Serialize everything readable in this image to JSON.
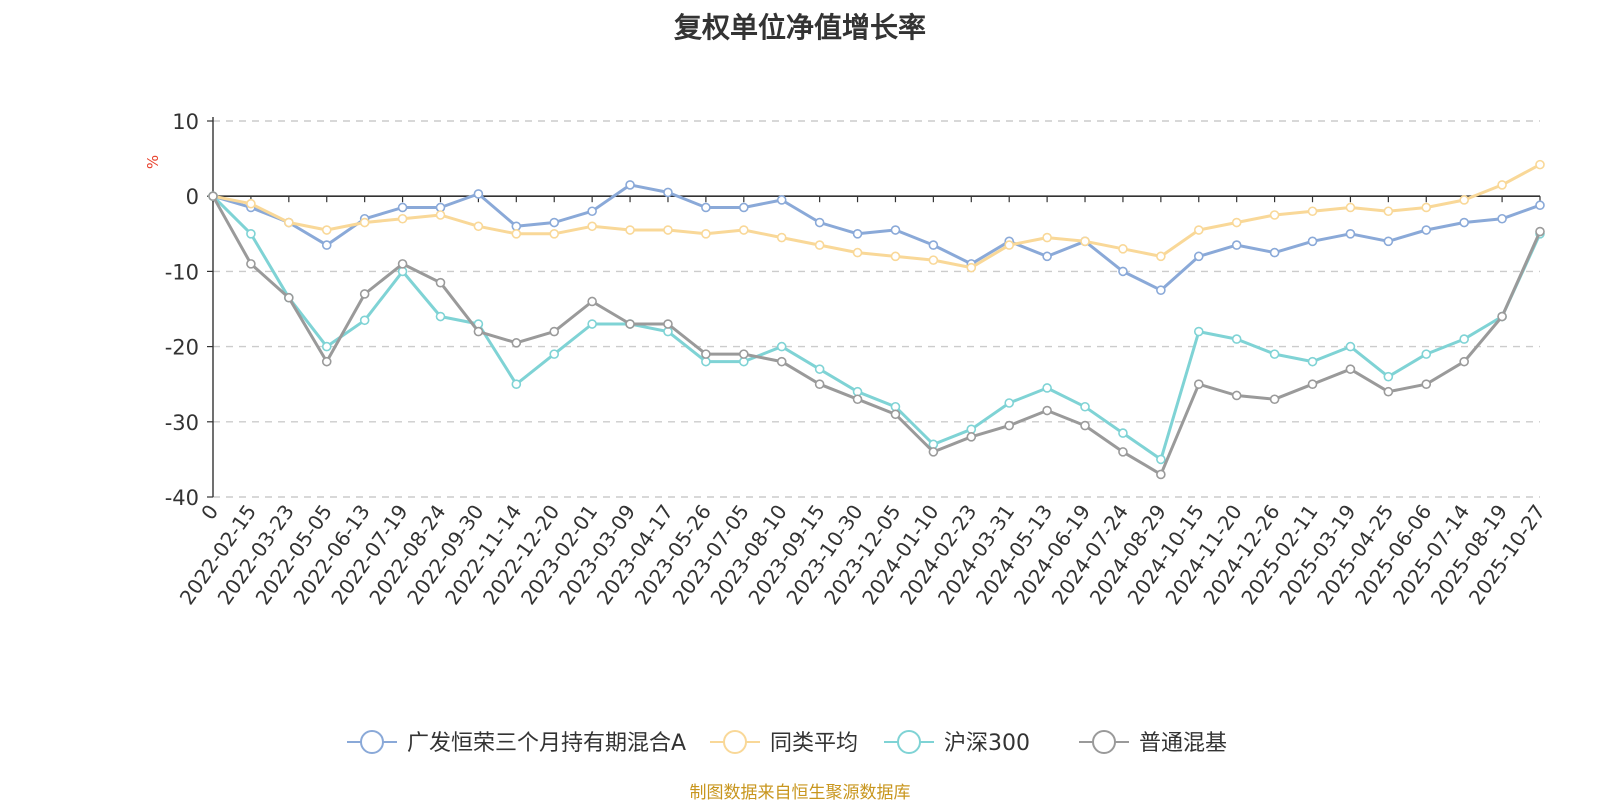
{
  "chart_data": {
    "type": "line",
    "title": "复权单位净值增长率",
    "ylabel": "%",
    "xlabel": "",
    "ylim": [
      -40,
      10
    ],
    "yticks": [
      10,
      0,
      -10,
      -20,
      -30,
      -40
    ],
    "grid": true,
    "legend_position": "bottom-center",
    "x": [
      "0",
      "2022-02-15",
      "2022-03-23",
      "2022-05-05",
      "2022-06-13",
      "2022-07-19",
      "2022-08-24",
      "2022-09-30",
      "2022-11-14",
      "2022-12-20",
      "2023-02-01",
      "2023-03-09",
      "2023-04-17",
      "2023-05-26",
      "2023-07-05",
      "2023-08-10",
      "2023-09-15",
      "2023-10-30",
      "2023-12-05",
      "2024-01-10",
      "2024-02-23",
      "2024-03-31",
      "2024-05-13",
      "2024-06-19",
      "2024-07-24",
      "2024-08-29",
      "2024-10-15",
      "2024-11-20",
      "2024-12-26",
      "2025-02-11",
      "2025-03-19",
      "2025-04-25",
      "2025-06-06",
      "2025-07-14",
      "2025-08-19",
      "2025-10-27"
    ],
    "series": [
      {
        "name": "广发恒荣三个月持有期混合A",
        "color": "#8aa9d8",
        "values": [
          0,
          -1.5,
          -3.5,
          -6.5,
          -3,
          -1.5,
          -1.5,
          0.3,
          -4,
          -3.5,
          -2,
          1.5,
          0.5,
          -1.5,
          -1.5,
          -0.5,
          -3.5,
          -5,
          -4.5,
          -6.5,
          -9,
          -6,
          -8,
          -6,
          -10,
          -12.5,
          -8,
          -6.5,
          -7.5,
          -6,
          -5,
          -6,
          -4.5,
          -3.5,
          -3,
          -1.2
        ]
      },
      {
        "name": "同类平均",
        "color": "#f9d898",
        "values": [
          0,
          -1,
          -3.5,
          -4.5,
          -3.5,
          -3,
          -2.5,
          -4,
          -5,
          -5,
          -4,
          -4.5,
          -4.5,
          -5,
          -4.5,
          -5.5,
          -6.5,
          -7.5,
          -8,
          -8.5,
          -9.5,
          -6.5,
          -5.5,
          -6,
          -7,
          -8,
          -4.5,
          -3.5,
          -2.5,
          -2,
          -1.5,
          -2,
          -1.5,
          -0.5,
          1.5,
          4.2
        ]
      },
      {
        "name": "沪深300",
        "color": "#7fd3d5",
        "values": [
          0,
          -5,
          -13.5,
          -20,
          -16.5,
          -10,
          -16,
          -17,
          -25,
          -21,
          -17,
          -17,
          -18,
          -22,
          -22,
          -20,
          -23,
          -26,
          -28,
          -33,
          -31,
          -27.5,
          -25.5,
          -28,
          -31.5,
          -35,
          -18,
          -19,
          -21,
          -22,
          -20,
          -24,
          -21,
          -19,
          -16,
          -5
        ]
      },
      {
        "name": "普通混基",
        "color": "#9a9a9a",
        "values": [
          0,
          -9,
          -13.5,
          -22,
          -13,
          -9,
          -11.5,
          -18,
          -19.5,
          -18,
          -14,
          -17,
          -17,
          -21,
          -21,
          -22,
          -25,
          -27,
          -29,
          -34,
          -32,
          -30.5,
          -28.5,
          -30.5,
          -34,
          -37,
          -25,
          -26.5,
          -27,
          -25,
          -23,
          -26,
          -25,
          -22,
          -16,
          -4.7
        ]
      }
    ]
  },
  "source_note": "制图数据来自恒生聚源数据库"
}
